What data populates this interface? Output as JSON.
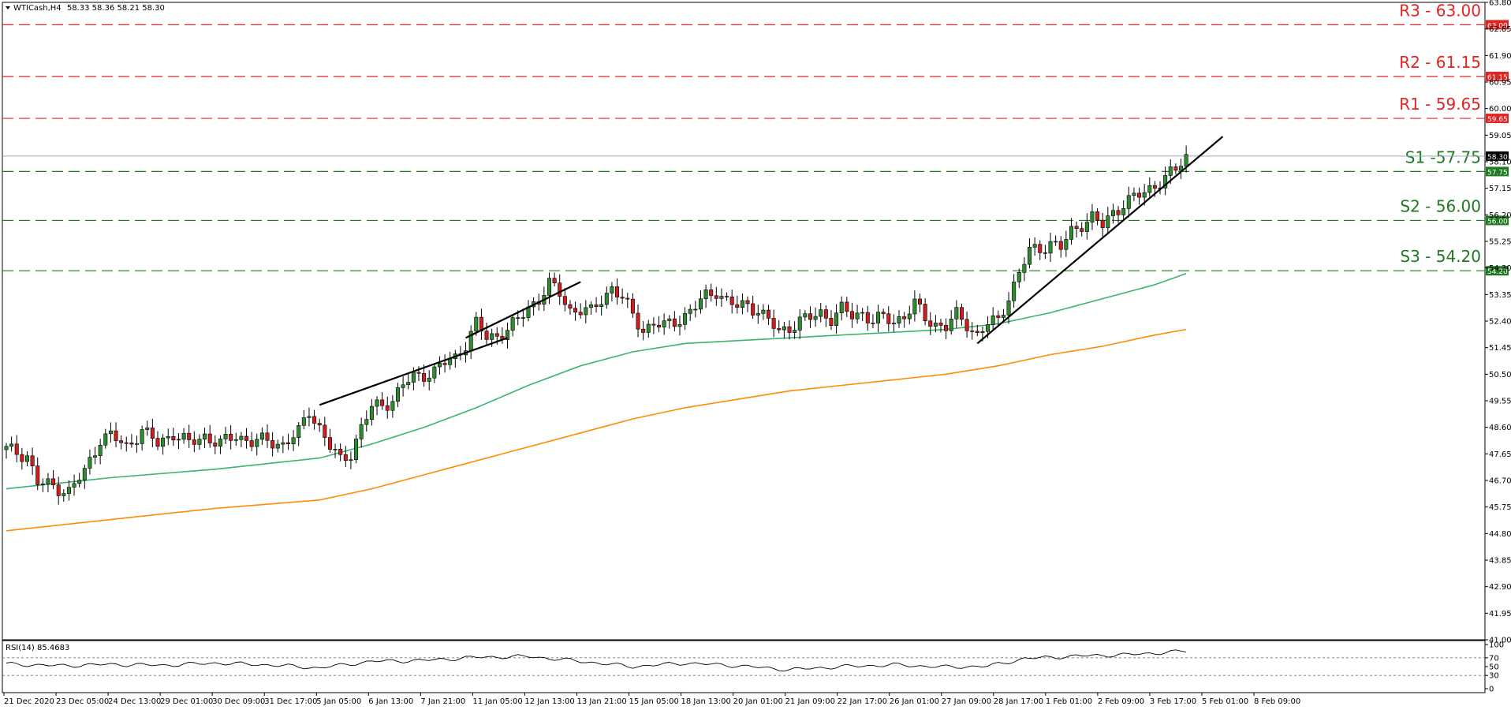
{
  "header": {
    "symbol_label": "WTICash,H4",
    "ohlc": "58.33 58.36 58.21 58.30"
  },
  "rsi_header": {
    "label": "RSI(14) 85.4683"
  },
  "colors": {
    "bull": "#2e8b2e",
    "bear": "#cc1f1f",
    "resistance": "#e32424",
    "support": "#1f7a1f",
    "ma_fast": "#3cb371",
    "ma_slow": "#ff8c00",
    "trendline": "#000000",
    "current_price_line": "#9aa9b8"
  },
  "chart_data": {
    "type": "candlestick",
    "symbol": "WTICash",
    "timeframe": "H4",
    "ylim": [
      41.0,
      63.8
    ],
    "y_ticks": [
      "63.80",
      "62.85",
      "61.90",
      "60.95",
      "60.00",
      "59.05",
      "58.10",
      "57.15",
      "56.20",
      "55.25",
      "54.30",
      "53.35",
      "52.40",
      "51.45",
      "50.50",
      "49.55",
      "48.60",
      "47.65",
      "46.70",
      "45.75",
      "44.80",
      "43.85",
      "42.90",
      "41.95",
      "41.00"
    ],
    "x_ticks": [
      "21 Dec 2020",
      "23 Dec 05:00",
      "24 Dec 13:00",
      "29 Dec 01:00",
      "30 Dec 09:00",
      "31 Dec 17:00",
      "5 Jan 05:00",
      "6 Jan 13:00",
      "7 Jan 21:00",
      "11 Jan 05:00",
      "12 Jan 13:00",
      "13 Jan 21:00",
      "15 Jan 05:00",
      "18 Jan 13:00",
      "20 Jan 01:00",
      "21 Jan 09:00",
      "22 Jan 17:00",
      "26 Jan 01:00",
      "27 Jan 09:00",
      "28 Jan 17:00",
      "1 Feb 01:00",
      "2 Feb 09:00",
      "3 Feb 17:00",
      "5 Feb 01:00",
      "8 Feb 09:00"
    ],
    "current_price": 58.3,
    "levels": [
      {
        "name": "R3",
        "label": "R3 - 63.00",
        "value": 63.0,
        "tag": "63.00",
        "kind": "resistance"
      },
      {
        "name": "R2",
        "label": "R2 - 61.15",
        "value": 61.15,
        "tag": "61.15",
        "kind": "resistance"
      },
      {
        "name": "R1",
        "label": "R1 - 59.65",
        "value": 59.65,
        "tag": "59.65",
        "kind": "resistance"
      },
      {
        "name": "S1",
        "label": "S1 -57.75",
        "value": 57.75,
        "tag": "57.75",
        "kind": "support"
      },
      {
        "name": "S2",
        "label": "S2 - 56.00",
        "value": 56.0,
        "tag": "56.00",
        "kind": "support"
      },
      {
        "name": "S3",
        "label": "S3 - 54.20",
        "value": 54.2,
        "tag": "54.20",
        "kind": "support"
      }
    ],
    "price_tag": "58.30",
    "close_path": [
      [
        0,
        47.8
      ],
      [
        4,
        47.6
      ],
      [
        6,
        46.6
      ],
      [
        9,
        46.5
      ],
      [
        12,
        46.3
      ],
      [
        15,
        47.0
      ],
      [
        18,
        48.2
      ],
      [
        20,
        48.3
      ],
      [
        23,
        47.9
      ],
      [
        26,
        48.5
      ],
      [
        29,
        48.0
      ],
      [
        32,
        48.4
      ],
      [
        35,
        48.0
      ],
      [
        38,
        48.3
      ],
      [
        41,
        48.0
      ],
      [
        44,
        48.3
      ],
      [
        47,
        48.1
      ],
      [
        50,
        48.1
      ],
      [
        53,
        48.0
      ],
      [
        56,
        48.4
      ],
      [
        58,
        49.2
      ],
      [
        60,
        48.6
      ],
      [
        62,
        47.9
      ],
      [
        64,
        47.4
      ],
      [
        66,
        47.7
      ],
      [
        68,
        48.6
      ],
      [
        70,
        49.3
      ],
      [
        72,
        49.4
      ],
      [
        74,
        49.6
      ],
      [
        76,
        50.1
      ],
      [
        78,
        50.4
      ],
      [
        80,
        50.5
      ],
      [
        82,
        50.6
      ],
      [
        84,
        50.9
      ],
      [
        86,
        51.1
      ],
      [
        88,
        51.6
      ],
      [
        90,
        52.3
      ],
      [
        92,
        51.8
      ],
      [
        94,
        51.9
      ],
      [
        96,
        52.1
      ],
      [
        98,
        52.4
      ],
      [
        100,
        52.9
      ],
      [
        102,
        53.2
      ],
      [
        104,
        53.7
      ],
      [
        106,
        53.4
      ],
      [
        108,
        52.8
      ],
      [
        110,
        52.8
      ],
      [
        112,
        52.7
      ],
      [
        114,
        53.2
      ],
      [
        116,
        53.6
      ],
      [
        118,
        53.2
      ],
      [
        120,
        52.6
      ],
      [
        122,
        52.1
      ],
      [
        124,
        52.3
      ],
      [
        126,
        52.2
      ],
      [
        128,
        52.4
      ],
      [
        130,
        52.6
      ],
      [
        132,
        52.9
      ],
      [
        134,
        53.3
      ],
      [
        136,
        53.5
      ],
      [
        138,
        53.1
      ],
      [
        140,
        52.9
      ],
      [
        142,
        53.0
      ],
      [
        144,
        52.8
      ],
      [
        146,
        52.4
      ],
      [
        148,
        52.0
      ],
      [
        150,
        52.2
      ],
      [
        152,
        52.4
      ],
      [
        154,
        52.5
      ],
      [
        156,
        52.7
      ],
      [
        158,
        52.5
      ],
      [
        160,
        52.8
      ],
      [
        162,
        52.6
      ],
      [
        164,
        52.7
      ],
      [
        166,
        52.4
      ],
      [
        168,
        52.5
      ],
      [
        170,
        52.4
      ],
      [
        172,
        52.6
      ],
      [
        174,
        53.0
      ],
      [
        176,
        52.5
      ],
      [
        178,
        52.3
      ],
      [
        180,
        52.2
      ],
      [
        182,
        52.6
      ],
      [
        184,
        52.3
      ],
      [
        186,
        51.9
      ],
      [
        188,
        52.3
      ],
      [
        190,
        52.4
      ],
      [
        192,
        53.3
      ],
      [
        194,
        54.1
      ],
      [
        196,
        54.9
      ],
      [
        198,
        55.0
      ],
      [
        200,
        55.2
      ],
      [
        202,
        55.0
      ],
      [
        204,
        55.6
      ],
      [
        206,
        55.9
      ],
      [
        208,
        56.1
      ],
      [
        210,
        55.8
      ],
      [
        212,
        56.3
      ],
      [
        214,
        56.6
      ],
      [
        216,
        56.8
      ],
      [
        218,
        57.0
      ],
      [
        220,
        57.3
      ],
      [
        222,
        57.5
      ],
      [
        224,
        57.8
      ],
      [
        226,
        58.3
      ]
    ],
    "ma_fast_path": [
      [
        0,
        46.4
      ],
      [
        20,
        46.8
      ],
      [
        40,
        47.1
      ],
      [
        60,
        47.5
      ],
      [
        70,
        48.0
      ],
      [
        80,
        48.6
      ],
      [
        90,
        49.3
      ],
      [
        100,
        50.1
      ],
      [
        110,
        50.8
      ],
      [
        120,
        51.3
      ],
      [
        130,
        51.6
      ],
      [
        140,
        51.7
      ],
      [
        150,
        51.8
      ],
      [
        160,
        51.9
      ],
      [
        170,
        52.0
      ],
      [
        180,
        52.1
      ],
      [
        190,
        52.3
      ],
      [
        200,
        52.7
      ],
      [
        210,
        53.2
      ],
      [
        220,
        53.7
      ],
      [
        226,
        54.1
      ]
    ],
    "ma_slow_path": [
      [
        0,
        44.9
      ],
      [
        20,
        45.3
      ],
      [
        40,
        45.7
      ],
      [
        60,
        46.0
      ],
      [
        70,
        46.4
      ],
      [
        80,
        46.9
      ],
      [
        90,
        47.4
      ],
      [
        100,
        47.9
      ],
      [
        110,
        48.4
      ],
      [
        120,
        48.9
      ],
      [
        130,
        49.3
      ],
      [
        140,
        49.6
      ],
      [
        150,
        49.9
      ],
      [
        160,
        50.1
      ],
      [
        170,
        50.3
      ],
      [
        180,
        50.5
      ],
      [
        190,
        50.8
      ],
      [
        200,
        51.2
      ],
      [
        210,
        51.5
      ],
      [
        220,
        51.9
      ],
      [
        226,
        52.1
      ]
    ],
    "trendlines": [
      {
        "name": "trendline-early-january",
        "from": [
          60,
          49.4
        ],
        "to": [
          96,
          51.8
        ]
      },
      {
        "name": "trendline-mid-january",
        "from": [
          88,
          51.8
        ],
        "to": [
          110,
          53.8
        ]
      },
      {
        "name": "trendline-february",
        "from": [
          186,
          51.6
        ],
        "to": [
          233,
          59.0
        ]
      }
    ],
    "rsi": {
      "ylim": [
        0,
        100
      ],
      "ticks": [
        "100",
        "70",
        "50",
        "30",
        "0"
      ],
      "levels": [
        70,
        30
      ],
      "last": 85.4683,
      "series": [
        [
          0,
          56
        ],
        [
          10,
          52
        ],
        [
          20,
          55
        ],
        [
          30,
          53
        ],
        [
          40,
          58
        ],
        [
          50,
          54
        ],
        [
          60,
          47
        ],
        [
          70,
          62
        ],
        [
          80,
          64
        ],
        [
          90,
          71
        ],
        [
          100,
          73
        ],
        [
          110,
          62
        ],
        [
          120,
          50
        ],
        [
          130,
          58
        ],
        [
          140,
          52
        ],
        [
          150,
          43
        ],
        [
          160,
          50
        ],
        [
          170,
          54
        ],
        [
          180,
          49
        ],
        [
          188,
          51
        ],
        [
          195,
          68
        ],
        [
          205,
          74
        ],
        [
          215,
          77
        ],
        [
          226,
          85
        ]
      ]
    }
  }
}
